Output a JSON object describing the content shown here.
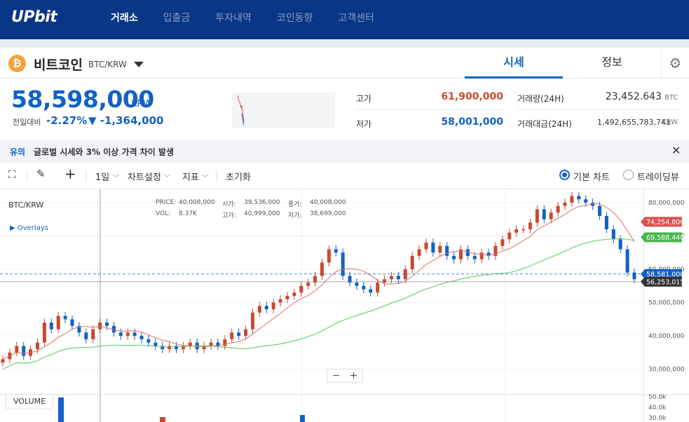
{
  "header": {
    "logo": "UPbit",
    "nav": [
      {
        "label": "거래소",
        "active": true
      },
      {
        "label": "입출금",
        "active": false
      },
      {
        "label": "투자내역",
        "active": false
      },
      {
        "label": "코인동향",
        "active": false
      },
      {
        "label": "고객센터",
        "active": false
      }
    ]
  },
  "coin": {
    "icon_glyph": "₿",
    "name": "비트코인",
    "pair": "BTC/KRW",
    "tabs": [
      "시세",
      "정보"
    ]
  },
  "ticker": {
    "price": "58,598,000",
    "unit": "KRW",
    "change_label": "전일대비",
    "change_pct": "-2.27%",
    "change_amt": "▼ -1,364,000"
  },
  "stats": {
    "high_label": "고가",
    "high_value": "61,900,000",
    "low_label": "저가",
    "low_value": "58,001,000",
    "vol_label": "거래량(24H)",
    "vol_value": "23,452.643",
    "vol_unit": "BTC",
    "amt_label": "거래대금(24H)",
    "amt_value": "1,492,655,783,741",
    "amt_unit": "KRW"
  },
  "notice": {
    "label": "유의",
    "text": "글로벌 시세와 3% 이상 가격 차이 발생"
  },
  "toolbar": {
    "interval": "1일",
    "chart_settings": "차트설정",
    "indicator": "지표",
    "reset": "초기화",
    "basic_chart": "기본 차트",
    "tradingview": "트레이딩뷰"
  },
  "chart_legend": {
    "symbol": "BTC/KRW",
    "overlays": "▶ Overlays",
    "price_label": "PRICE:",
    "price_value": "40,008,000",
    "open_label": "시가:",
    "open_value": "39,536,000",
    "close_label": "종가:",
    "close_value": "40,008,000",
    "vol_label": "VOL:",
    "vol_value": "8.37K",
    "high_label": "고가:",
    "high_value": "40,999,000",
    "low_label": "저가:",
    "low_value": "38,699,000",
    "volume_button": "VOLUME"
  },
  "colors": {
    "up": "#c84a31",
    "down": "#1261c4",
    "ma_short": "#d9706b",
    "ma_long": "#5cc25c",
    "brand": "#093687"
  },
  "chart_data": {
    "type": "candlestick",
    "ylim": [
      23000000,
      84000000
    ],
    "y_ticks": [
      "80,000,000",
      "70,000,000",
      "60,000,000",
      "50,000,000",
      "40,000,000",
      "30,000,000"
    ],
    "vol_ticks": [
      "50.0k",
      "40.0k",
      "30.0k"
    ],
    "price_tags": [
      {
        "value": "74,254,800",
        "num": 74254800,
        "color": "#d9534f"
      },
      {
        "value": "69,588,440",
        "num": 69588440,
        "color": "#49b649"
      },
      {
        "value": "58,581,000",
        "num": 58581000,
        "color": "#1261c4"
      },
      {
        "value": "56,253,015",
        "num": 56253015,
        "color": "#333333"
      }
    ],
    "closes": [
      33,
      35,
      37,
      34,
      36,
      38,
      44,
      42,
      46,
      45,
      43,
      41,
      39,
      42,
      44,
      43,
      41,
      40,
      41,
      40,
      39,
      38,
      37,
      36,
      37,
      36,
      37,
      38,
      36,
      37,
      38,
      37,
      39,
      41,
      40,
      42,
      47,
      49,
      48,
      50,
      51,
      52,
      53,
      55,
      56,
      58,
      62,
      66,
      65,
      58,
      56,
      55,
      54,
      53,
      56,
      57,
      58,
      57,
      60,
      64,
      66,
      68,
      65,
      67,
      64,
      63,
      66,
      64,
      63,
      65,
      64,
      67,
      69,
      71,
      72,
      72,
      74,
      78,
      75,
      77,
      79,
      80,
      82,
      81,
      80,
      79,
      76,
      72,
      69,
      66,
      59,
      57
    ]
  }
}
